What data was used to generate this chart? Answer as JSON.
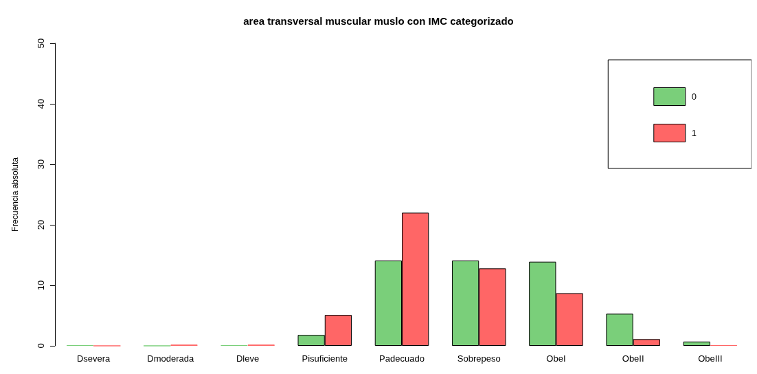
{
  "chart_data": {
    "type": "bar",
    "title": "area transversal muscular muslo con IMC categorizado",
    "ylabel": "Frecuencia absoluta",
    "categories": [
      "Dsevera",
      "Dmoderada",
      "Dleve",
      "Pisuficiente",
      "Padecuado",
      "Sobrepeso",
      "ObeI",
      "ObeII",
      "ObeIII"
    ],
    "series": [
      {
        "name": "0",
        "color": "#7acf7a",
        "values": [
          0.1,
          0,
          0.1,
          1.8,
          14.1,
          14.1,
          13.9,
          5.3,
          0.7
        ]
      },
      {
        "name": "1",
        "color": "#ff6666",
        "values": [
          0,
          0.2,
          0.2,
          5.1,
          22,
          12.8,
          8.7,
          1.1,
          0.1
        ]
      }
    ],
    "ylim": [
      0,
      50
    ],
    "yticks": [
      0,
      10,
      20,
      30,
      40,
      50
    ],
    "grid": false,
    "legend": "top right"
  }
}
